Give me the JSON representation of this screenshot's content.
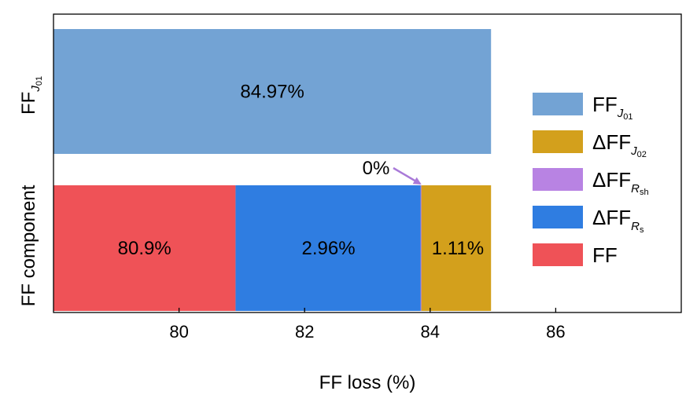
{
  "colors": {
    "FF_J01": "#73a3d4",
    "dFF_J02": "#d3a01c",
    "dFF_Rsh": "#b883e3",
    "dFF_Rs": "#2f7de1",
    "FF": "#ef5257",
    "annotation": "#a97ad8"
  },
  "chart_data": {
    "type": "bar",
    "orientation": "horizontal",
    "stacked": true,
    "xlabel": "FF loss (%)",
    "ylabel": "FF component",
    "xlim": [
      78,
      88
    ],
    "xticks": [
      "80",
      "82",
      "84",
      "86"
    ],
    "tick_values": [
      80,
      82,
      84,
      86
    ],
    "categories": [
      "FF_J01",
      "FF component"
    ],
    "category_labels": [
      {
        "main": "FF",
        "sub": "J",
        "subsub": "01"
      }
    ],
    "bars": [
      {
        "category": "FF_J01",
        "segments": [
          {
            "series": "FF_J01",
            "start": 78,
            "end": 84.97,
            "label": "84.97%"
          }
        ]
      },
      {
        "category": "FF component",
        "segments": [
          {
            "series": "FF",
            "start": 78,
            "end": 80.9,
            "label": "80.9%"
          },
          {
            "series": "dFF_Rs",
            "start": 80.9,
            "end": 83.86,
            "label": "2.96%"
          },
          {
            "series": "dFF_Rsh",
            "start": 83.86,
            "end": 83.86,
            "label": "0%"
          },
          {
            "series": "dFF_J02",
            "start": 83.86,
            "end": 84.97,
            "label": "1.11%"
          }
        ]
      }
    ],
    "legend": {
      "position": "right",
      "entries": [
        {
          "series": "FF_J01",
          "delta": "",
          "main": "FF",
          "sub": "J",
          "subsub": "01"
        },
        {
          "series": "dFF_J02",
          "delta": "Δ",
          "main": "FF",
          "sub": "J",
          "subsub": "02"
        },
        {
          "series": "dFF_Rsh",
          "delta": "Δ",
          "main": "FF",
          "sub": "R",
          "subsub": "sh"
        },
        {
          "series": "dFF_Rs",
          "delta": "Δ",
          "main": "FF",
          "sub": "R",
          "subsub": "s"
        },
        {
          "series": "FF",
          "delta": "",
          "main": "FF",
          "sub": "",
          "subsub": ""
        }
      ]
    },
    "annotation": {
      "text": "0%",
      "points_to": "dFF_Rsh"
    }
  }
}
